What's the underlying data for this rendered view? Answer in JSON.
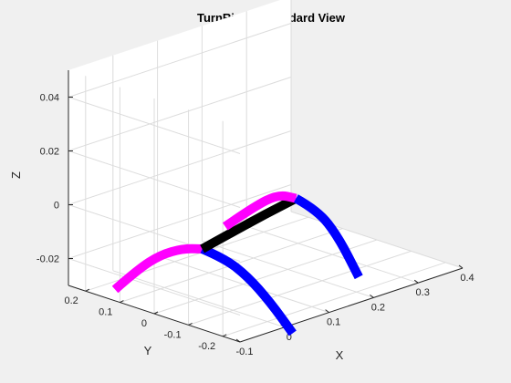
{
  "chart_data": {
    "type": "line",
    "projection": "3d",
    "title": "TurnRight - Standard View",
    "xlabel": "X",
    "ylabel": "Y",
    "zlabel": "Z",
    "xlim": [
      -0.1,
      0.4
    ],
    "ylim": [
      -0.25,
      0.25
    ],
    "zlim": [
      -0.03,
      0.05
    ],
    "xticks": [
      "-0.1",
      "0",
      "0.1",
      "0.2",
      "0.3",
      "0.4"
    ],
    "yticks": [
      "-0.2",
      "-0.1",
      "0",
      "0.1",
      "0.2"
    ],
    "zticks": [
      "-0.02",
      "0",
      "0.02",
      "0.04"
    ],
    "grid": true,
    "series": [
      {
        "color": "#ff00ff",
        "points": [
          [
            -0.08,
            0.14,
            -0.028
          ],
          [
            -0.06,
            0.1,
            -0.02
          ],
          [
            -0.04,
            0.06,
            -0.014
          ],
          [
            -0.02,
            0.02,
            -0.011
          ],
          [
            0.0,
            -0.01,
            -0.011
          ]
        ]
      },
      {
        "color": "#0000ff",
        "points": [
          [
            0.0,
            -0.01,
            -0.011
          ],
          [
            0.02,
            -0.05,
            -0.014
          ],
          [
            0.04,
            -0.09,
            -0.02
          ],
          [
            0.06,
            -0.13,
            -0.029
          ],
          [
            0.08,
            -0.17,
            -0.04
          ]
        ]
      },
      {
        "color": "#000000",
        "points": [
          [
            0.0,
            -0.01,
            -0.011
          ],
          [
            0.08,
            0.003,
            -0.0095
          ],
          [
            0.16,
            0.015,
            -0.008
          ],
          [
            0.24,
            0.028,
            -0.007
          ]
        ]
      },
      {
        "color": "#ff00ff",
        "points": [
          [
            0.175,
            0.15,
            -0.019
          ],
          [
            0.2,
            0.1,
            -0.011
          ],
          [
            0.225,
            0.06,
            -0.006
          ],
          [
            0.24,
            0.028,
            -0.007
          ]
        ]
      },
      {
        "color": "#0000ff",
        "points": [
          [
            0.24,
            0.028,
            -0.007
          ],
          [
            0.26,
            -0.01,
            -0.011
          ],
          [
            0.275,
            -0.05,
            -0.02
          ],
          [
            0.29,
            -0.09,
            -0.034
          ]
        ]
      }
    ]
  }
}
